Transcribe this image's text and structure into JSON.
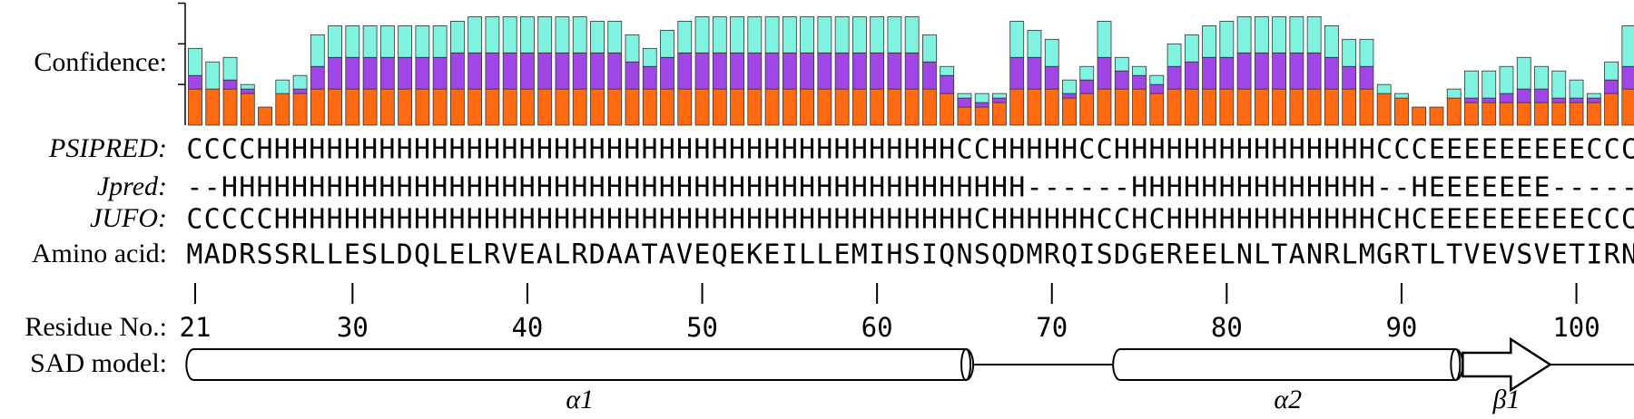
{
  "confidence": {
    "label": "Confidence:",
    "ylim": [
      0,
      27
    ],
    "yticks": [
      9,
      18,
      27
    ]
  },
  "tracks": [
    {
      "label": "PSIPRED:",
      "color": "#62e6d8",
      "bar_color": "#80f3e0",
      "sequence": "CCCCHHHHHHHHHHHHHHHHHHHHHHHHHHHHHHHHHHHHHHHHCCHHHHHCCHHHHHHHHHHHHHHHCCCEEEEEEEEECCC",
      "confidence": [
        6,
        6,
        5,
        1,
        0,
        3,
        3,
        7,
        7,
        7,
        7,
        7,
        7,
        7,
        7,
        7,
        8,
        8,
        8,
        8,
        8,
        8,
        8,
        7,
        7,
        6,
        4,
        6,
        7,
        8,
        8,
        8,
        8,
        8,
        8,
        8,
        8,
        8,
        8,
        8,
        8,
        8,
        6,
        2,
        1,
        2,
        1,
        8,
        6,
        6,
        3,
        3,
        8,
        3,
        2,
        2,
        5,
        6,
        7,
        8,
        8,
        8,
        8,
        8,
        8,
        7,
        6,
        6,
        2,
        1,
        0,
        0,
        2,
        6,
        6,
        6,
        7,
        5,
        6,
        4,
        1,
        4,
        9
      ]
    },
    {
      "label": "Jpred:",
      "color": "#a23ff0",
      "bar_color": "#a046e6",
      "sequence": "--HHHHHHHHHHHHHHHHHHHHHHHHHHHHHHHHHHHHHHHHHHHHHH------HHHHHHHHHHHHHH--HEEEEEEE-----",
      "confidence": [
        3,
        0,
        2,
        1,
        0,
        0,
        1,
        5,
        7,
        7,
        7,
        7,
        7,
        7,
        7,
        8,
        8,
        8,
        8,
        8,
        8,
        8,
        8,
        8,
        8,
        6,
        5,
        7,
        8,
        8,
        8,
        8,
        8,
        8,
        8,
        8,
        8,
        8,
        8,
        8,
        8,
        8,
        6,
        4,
        2,
        1,
        1,
        7,
        7,
        5,
        1,
        3,
        7,
        4,
        3,
        2,
        5,
        6,
        7,
        7,
        8,
        8,
        8,
        8,
        8,
        7,
        5,
        5,
        0,
        0,
        0,
        0,
        0,
        1,
        1,
        2,
        3,
        3,
        1,
        1,
        1,
        3,
        5
      ]
    },
    {
      "label": "JUFO:",
      "color": "#ff6c1a",
      "bar_color": "#ff6a10",
      "sequence": "CCCCCHHHHHHHHHHHHHHHHHHHHHHHHHHHHHHHHHHHHHHHHCHHHHHHCCHCHHHHHHHHHHHHCHCEEEEEEEEECCC",
      "confidence": [
        8,
        8,
        8,
        7,
        4,
        7,
        7,
        8,
        8,
        8,
        8,
        8,
        8,
        8,
        8,
        8,
        8,
        8,
        8,
        8,
        8,
        8,
        8,
        8,
        8,
        8,
        8,
        8,
        8,
        8,
        8,
        8,
        8,
        8,
        8,
        8,
        8,
        8,
        8,
        8,
        8,
        8,
        8,
        7,
        4,
        4,
        5,
        8,
        8,
        8,
        6,
        7,
        8,
        8,
        8,
        7,
        8,
        8,
        8,
        8,
        8,
        8,
        8,
        8,
        8,
        8,
        8,
        8,
        7,
        6,
        4,
        4,
        6,
        5,
        5,
        5,
        5,
        5,
        5,
        5,
        5,
        7,
        8
      ]
    }
  ],
  "amino_acid": {
    "label": "Amino acid:",
    "sequence": "MADRSSRLLESLDQLELRVEALRDAATAVEQEKEILLEMIHSIQNSQDMRQISDGEREELNLTANRLMGRTLTVEVSVETIRN"
  },
  "residue_numbers": {
    "label": "Residue No.:",
    "ticks": [
      21,
      30,
      40,
      50,
      60,
      70,
      80,
      90,
      100
    ]
  },
  "sad_model": {
    "label": "SAD model:",
    "elements": [
      {
        "kind": "helix",
        "label": "α1",
        "start": 21,
        "end": 65
      },
      {
        "kind": "helix",
        "label": "α2",
        "start": 74,
        "end": 93
      },
      {
        "kind": "strand",
        "label": "β1",
        "start": 94,
        "end": 98
      }
    ]
  }
}
